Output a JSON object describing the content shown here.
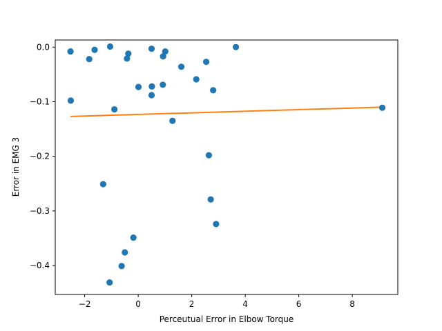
{
  "chart_data": {
    "type": "scatter",
    "title": "",
    "xlabel": "Perceutual Error in Elbow Torque",
    "ylabel": "Error in EMG 3",
    "xlim": [
      -3.1,
      9.7
    ],
    "ylim": [
      -0.453,
      0.013
    ],
    "xticks": [
      -2,
      0,
      2,
      4,
      6,
      8
    ],
    "xtick_labels": [
      "−2",
      "0",
      "2",
      "4",
      "6",
      "8"
    ],
    "yticks": [
      0.0,
      -0.1,
      -0.2,
      -0.3,
      -0.4
    ],
    "ytick_labels": [
      "0.0",
      "−0.1",
      "−0.2",
      "−0.3",
      "−0.4"
    ],
    "grid": false,
    "series": [
      {
        "kind": "scatter",
        "color": "#1f77b4",
        "points": [
          [
            -2.53,
            -0.008
          ],
          [
            -1.63,
            -0.005
          ],
          [
            -1.83,
            -0.022
          ],
          [
            -1.05,
            0.001
          ],
          [
            -0.37,
            -0.012
          ],
          [
            -0.42,
            -0.021
          ],
          [
            0.5,
            -0.003
          ],
          [
            0.93,
            -0.017
          ],
          [
            1.01,
            -0.008
          ],
          [
            3.65,
            0.0
          ],
          [
            1.61,
            -0.036
          ],
          [
            2.54,
            -0.027
          ],
          [
            2.17,
            -0.059
          ],
          [
            0.01,
            -0.073
          ],
          [
            0.51,
            -0.072
          ],
          [
            0.92,
            -0.069
          ],
          [
            2.8,
            -0.079
          ],
          [
            0.5,
            -0.088
          ],
          [
            -2.52,
            -0.098
          ],
          [
            -0.89,
            -0.114
          ],
          [
            1.28,
            -0.135
          ],
          [
            9.12,
            -0.111
          ],
          [
            2.64,
            -0.198
          ],
          [
            -1.31,
            -0.251
          ],
          [
            2.71,
            -0.279
          ],
          [
            2.91,
            -0.324
          ],
          [
            -0.18,
            -0.349
          ],
          [
            -0.5,
            -0.376
          ],
          [
            -0.62,
            -0.401
          ],
          [
            -1.07,
            -0.431
          ]
        ]
      },
      {
        "kind": "line",
        "color": "#ff7f0e",
        "points": [
          [
            -2.53,
            -0.127
          ],
          [
            9.12,
            -0.11
          ]
        ]
      }
    ]
  }
}
